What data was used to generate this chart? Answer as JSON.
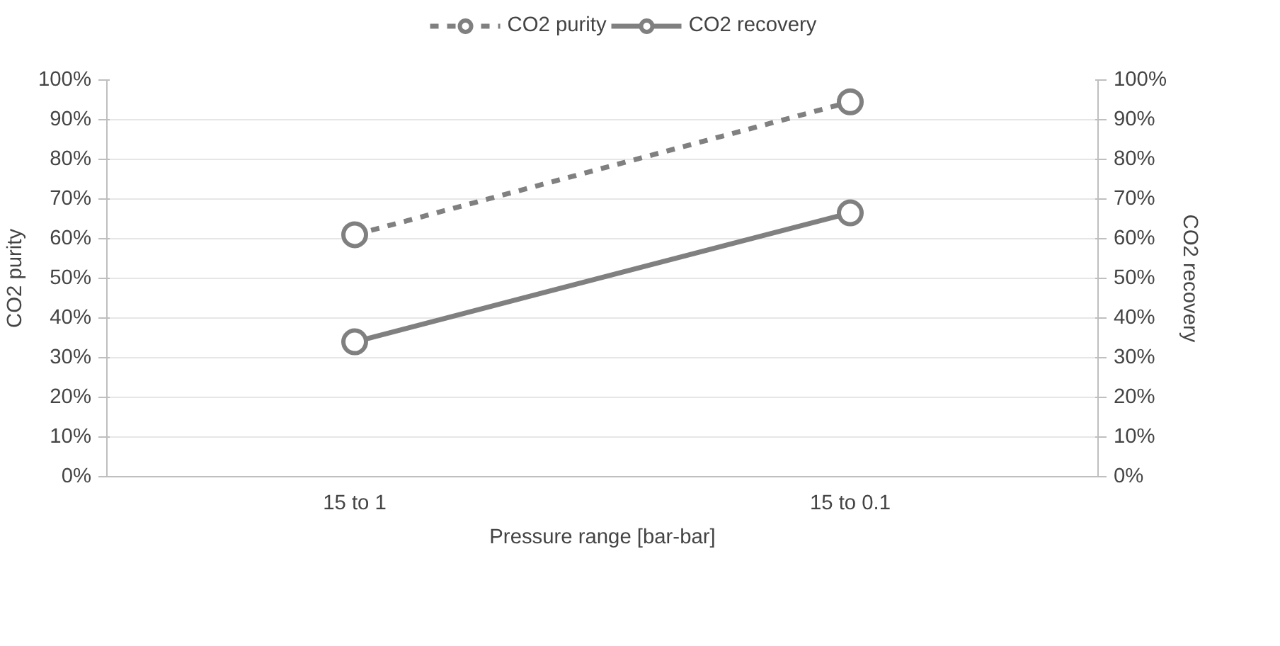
{
  "chart_data": {
    "type": "line",
    "xlabel": "Pressure range [bar-bar]",
    "ylabel": "CO2 purity",
    "y2label": "CO2 recovery",
    "categories": [
      "15 to 1",
      "15 to 0.1"
    ],
    "series": [
      {
        "name": "CO2 purity",
        "color": "#808080",
        "values": [
          61,
          94.5
        ],
        "line_style": "dashed",
        "marker": "circle"
      },
      {
        "name": "CO2 recovery",
        "color": "#808080",
        "values": [
          34,
          66.5
        ],
        "line_style": "solid",
        "marker": "circle"
      }
    ],
    "ylim": [
      0,
      100
    ],
    "yticks": [
      {
        "value": 0,
        "label": "0%"
      },
      {
        "value": 10,
        "label": "10%"
      },
      {
        "value": 20,
        "label": "20%"
      },
      {
        "value": 30,
        "label": "30%"
      },
      {
        "value": 40,
        "label": "40%"
      },
      {
        "value": 50,
        "label": "50%"
      },
      {
        "value": 60,
        "label": "60%"
      },
      {
        "value": 70,
        "label": "70%"
      },
      {
        "value": 80,
        "label": "80%"
      },
      {
        "value": 90,
        "label": "90%"
      },
      {
        "value": 100,
        "label": "100%"
      }
    ],
    "y2lim": [
      0,
      100
    ],
    "y2ticks": [
      {
        "value": 0,
        "label": "0%"
      },
      {
        "value": 10,
        "label": "10%"
      },
      {
        "value": 20,
        "label": "20%"
      },
      {
        "value": 30,
        "label": "30%"
      },
      {
        "value": 40,
        "label": "40%"
      },
      {
        "value": 50,
        "label": "50%"
      },
      {
        "value": 60,
        "label": "60%"
      },
      {
        "value": 70,
        "label": "70%"
      },
      {
        "value": 80,
        "label": "80%"
      },
      {
        "value": 90,
        "label": "90%"
      },
      {
        "value": 100,
        "label": "100%"
      }
    ],
    "grid": "y",
    "legend": "top"
  }
}
